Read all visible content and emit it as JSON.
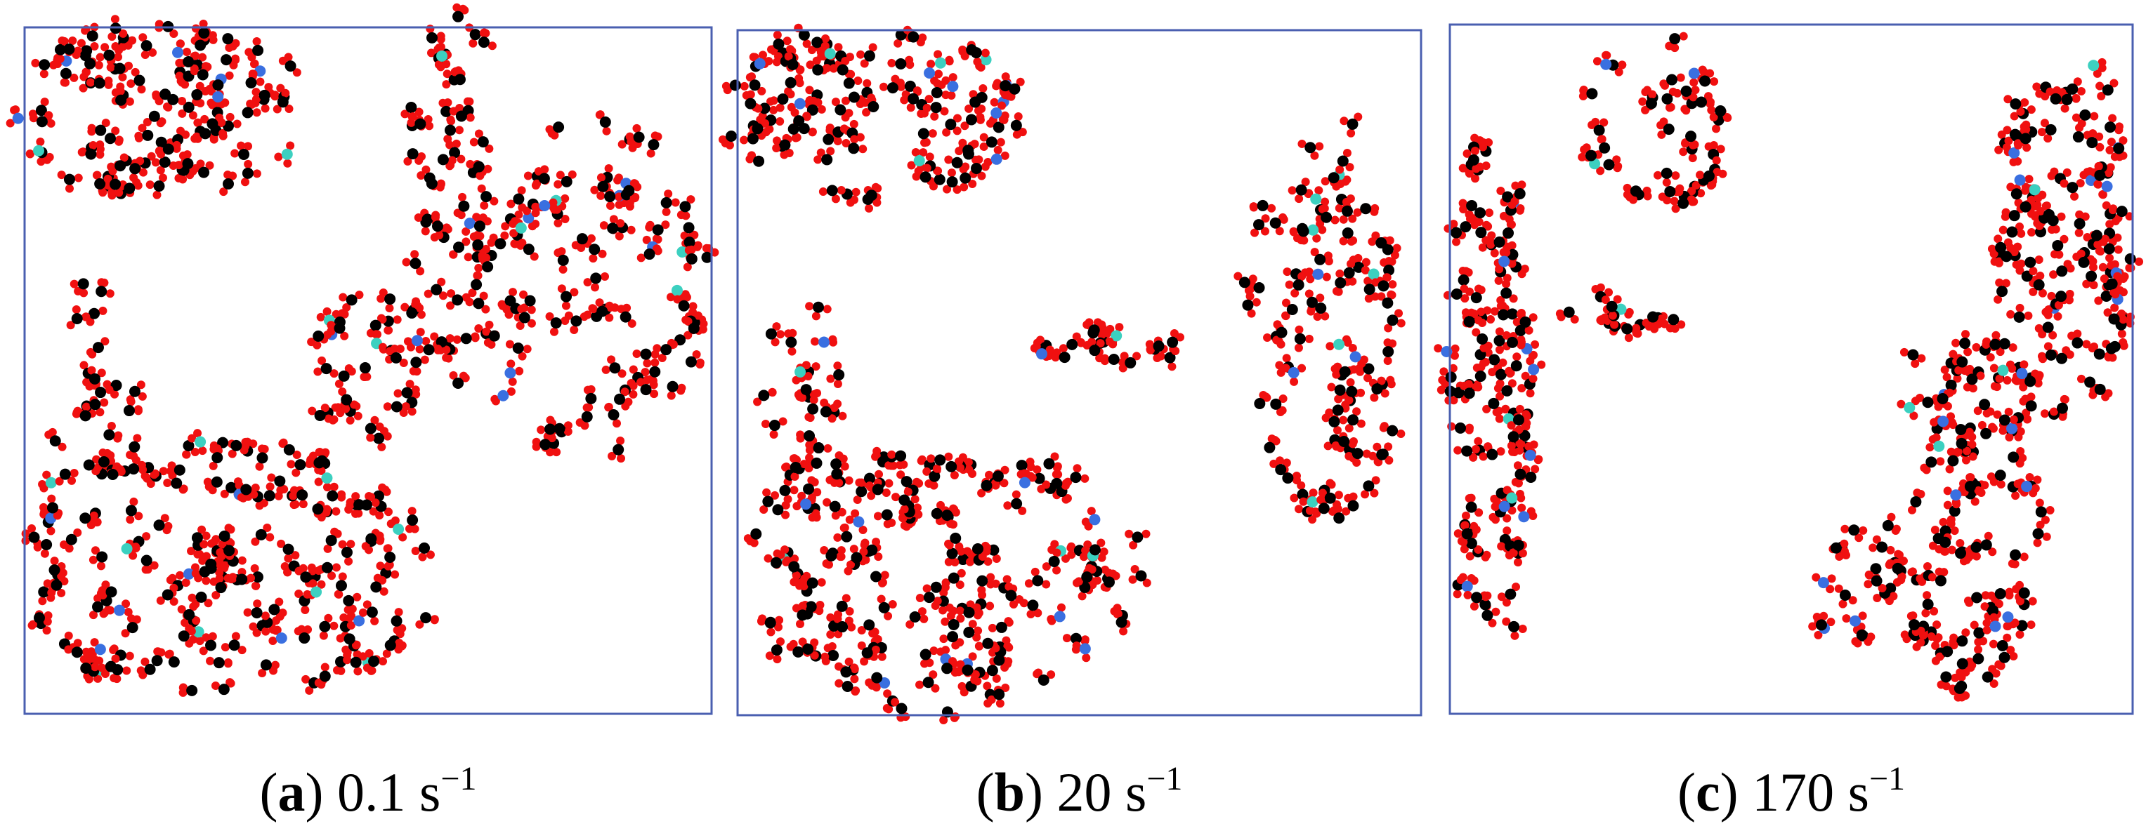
{
  "panels": [
    {
      "caption_parts": [
        "(",
        "a",
        ") 0.1 s",
        "−1"
      ]
    },
    {
      "caption_parts": [
        "(",
        "b",
        ") 20 s",
        "−1"
      ]
    },
    {
      "caption_parts": [
        "(",
        "c",
        ") 170 s",
        "−1"
      ]
    }
  ]
}
